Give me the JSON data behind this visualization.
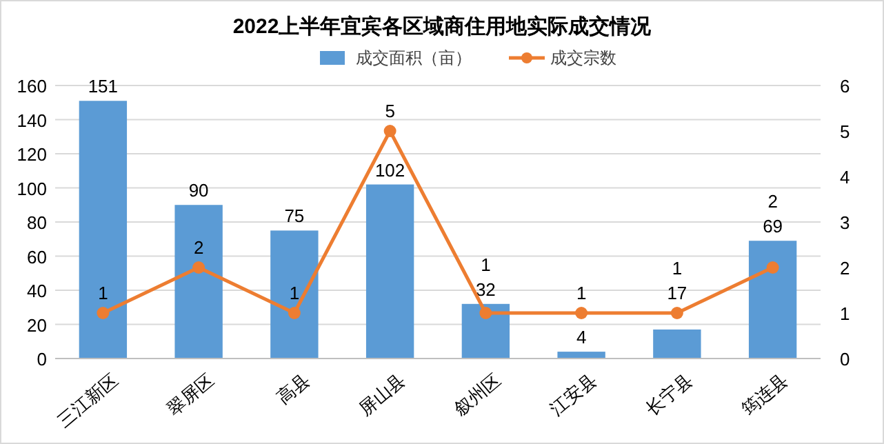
{
  "chart_data": {
    "type": "bar",
    "title": "2022上半年宜宾各区域商住用地实际成交情况",
    "categories": [
      "三江新区",
      "翠屏区",
      "高县",
      "屏山县",
      "叙州区",
      "江安县",
      "长宁县",
      "筠连县"
    ],
    "series": [
      {
        "name": "成交面积（亩）",
        "color": "#5b9bd5",
        "values": [
          151,
          90,
          75,
          102,
          32,
          4,
          17,
          69
        ]
      },
      {
        "name": "成交宗数",
        "type": "line",
        "axis": "y2",
        "color": "#ed7d31",
        "values": [
          1,
          2,
          1,
          5,
          1,
          1,
          1,
          2
        ]
      }
    ],
    "ylim": [
      0,
      160
    ],
    "yticks": [
      0,
      20,
      40,
      60,
      80,
      100,
      120,
      140,
      160
    ],
    "y2lim": [
      0,
      6
    ],
    "y2ticks": [
      0,
      1,
      2,
      3,
      4,
      5,
      6
    ],
    "grid": "y",
    "legend": "top",
    "marker": "circle",
    "line_style": "solid",
    "data_labels": true
  }
}
